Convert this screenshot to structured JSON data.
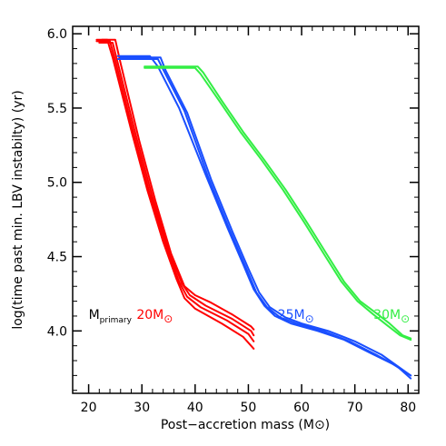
{
  "chart_data": {
    "type": "line",
    "xlabel": "Post−accretion mass (M⊙)",
    "ylabel": "log(time past min. LBV instabilty) (yr)",
    "xlim": [
      17,
      82
    ],
    "ylim": [
      3.58,
      6.05
    ],
    "xticks": [
      20,
      30,
      40,
      50,
      60,
      70,
      80
    ],
    "yticks": [
      4.0,
      4.5,
      5.0,
      5.5,
      6.0
    ],
    "ytick_labels": [
      "4.0",
      "4.5",
      "5.0",
      "5.5",
      "6.0"
    ],
    "grid": false,
    "annotations": [
      {
        "text": "M",
        "sub": "primary",
        "color": "#000000",
        "x": 20.0,
        "y": 4.08
      },
      {
        "text": "20M",
        "sub": "⊙",
        "color": "#ff0000",
        "x": 29.0,
        "y": 4.08
      },
      {
        "text": "25M",
        "sub": "⊙",
        "color": "#1a4fff",
        "x": 55.5,
        "y": 4.08
      },
      {
        "text": "30M",
        "sub": "⊙",
        "color": "#33ee44",
        "x": 73.5,
        "y": 4.08
      }
    ],
    "series": [
      {
        "group": "20M",
        "color": "#ff0000",
        "points": [
          [
            21.5,
            5.96
          ],
          [
            23.5,
            5.96
          ],
          [
            24.5,
            5.84
          ],
          [
            28,
            5.35
          ],
          [
            31,
            4.95
          ],
          [
            34,
            4.6
          ],
          [
            36.5,
            4.35
          ],
          [
            38,
            4.22
          ],
          [
            40,
            4.15
          ],
          [
            45,
            4.05
          ],
          [
            49,
            3.96
          ],
          [
            51,
            3.88
          ]
        ]
      },
      {
        "group": "20M",
        "color": "#ff0000",
        "points": [
          [
            21.5,
            5.95
          ],
          [
            24,
            5.95
          ],
          [
            25,
            5.82
          ],
          [
            28.5,
            5.32
          ],
          [
            31.5,
            4.92
          ],
          [
            34.5,
            4.58
          ],
          [
            37,
            4.33
          ],
          [
            38.5,
            4.23
          ],
          [
            41,
            4.16
          ],
          [
            46,
            4.07
          ],
          [
            50,
            3.98
          ],
          [
            51,
            3.93
          ]
        ]
      },
      {
        "group": "20M",
        "color": "#ff0000",
        "points": [
          [
            22,
            5.94
          ],
          [
            24.5,
            5.94
          ],
          [
            25.5,
            5.8
          ],
          [
            29,
            5.3
          ],
          [
            32,
            4.9
          ],
          [
            35,
            4.55
          ],
          [
            37.5,
            4.32
          ],
          [
            39,
            4.24
          ],
          [
            42,
            4.17
          ],
          [
            47,
            4.08
          ],
          [
            50.5,
            4.0
          ],
          [
            51,
            3.97
          ]
        ]
      },
      {
        "group": "20M",
        "color": "#ff0000",
        "points": [
          [
            22.5,
            5.96
          ],
          [
            25,
            5.96
          ],
          [
            26,
            5.8
          ],
          [
            29.5,
            5.28
          ],
          [
            32.5,
            4.88
          ],
          [
            35.5,
            4.52
          ],
          [
            38,
            4.3
          ],
          [
            40,
            4.24
          ],
          [
            43,
            4.19
          ],
          [
            47,
            4.11
          ],
          [
            50.5,
            4.03
          ],
          [
            51,
            4.01
          ]
        ]
      },
      {
        "group": "25M",
        "color": "#1a4fff",
        "points": [
          [
            25.5,
            5.85
          ],
          [
            31.5,
            5.85
          ],
          [
            33,
            5.78
          ],
          [
            37,
            5.5
          ],
          [
            42,
            5.05
          ],
          [
            46,
            4.7
          ],
          [
            49,
            4.45
          ],
          [
            51,
            4.28
          ],
          [
            53,
            4.17
          ],
          [
            55,
            4.1
          ],
          [
            58,
            4.05
          ],
          [
            63,
            4.0
          ],
          [
            68,
            3.94
          ],
          [
            73,
            3.85
          ],
          [
            77,
            3.78
          ],
          [
            80.5,
            3.7
          ]
        ]
      },
      {
        "group": "25M",
        "color": "#1a4fff",
        "points": [
          [
            25.5,
            5.83
          ],
          [
            33,
            5.83
          ],
          [
            34,
            5.76
          ],
          [
            38,
            5.48
          ],
          [
            42.5,
            5.03
          ],
          [
            46.5,
            4.68
          ],
          [
            49.5,
            4.43
          ],
          [
            51.5,
            4.26
          ],
          [
            53.5,
            4.16
          ],
          [
            56,
            4.09
          ],
          [
            59,
            4.05
          ],
          [
            64,
            4.0
          ],
          [
            69,
            3.93
          ],
          [
            74,
            3.84
          ],
          [
            78,
            3.76
          ],
          [
            80.5,
            3.68
          ]
        ]
      },
      {
        "group": "25M",
        "color": "#1a4fff",
        "points": [
          [
            26,
            5.84
          ],
          [
            33.5,
            5.84
          ],
          [
            34.5,
            5.75
          ],
          [
            38.5,
            5.47
          ],
          [
            43,
            5.02
          ],
          [
            47,
            4.67
          ],
          [
            50,
            4.42
          ],
          [
            52,
            4.26
          ],
          [
            54,
            4.16
          ],
          [
            57,
            4.09
          ],
          [
            60,
            4.05
          ],
          [
            65,
            4.0
          ],
          [
            70,
            3.93
          ],
          [
            75,
            3.84
          ],
          [
            80.5,
            3.7
          ]
        ]
      },
      {
        "group": "30M",
        "color": "#33ee44",
        "points": [
          [
            30.5,
            5.78
          ],
          [
            40.5,
            5.78
          ],
          [
            41.5,
            5.74
          ],
          [
            45,
            5.55
          ],
          [
            49,
            5.34
          ],
          [
            53,
            5.15
          ],
          [
            57,
            4.95
          ],
          [
            61,
            4.73
          ],
          [
            65,
            4.5
          ],
          [
            68,
            4.33
          ],
          [
            71,
            4.2
          ],
          [
            74,
            4.12
          ],
          [
            76.5,
            4.05
          ],
          [
            79,
            3.97
          ],
          [
            80.5,
            3.95
          ]
        ]
      },
      {
        "group": "30M",
        "color": "#33ee44",
        "points": [
          [
            30.5,
            5.77
          ],
          [
            40,
            5.77
          ],
          [
            41,
            5.73
          ],
          [
            44.5,
            5.55
          ],
          [
            48.5,
            5.34
          ],
          [
            52.5,
            5.15
          ],
          [
            56.5,
            4.95
          ],
          [
            60.5,
            4.73
          ],
          [
            64.5,
            4.5
          ],
          [
            67.5,
            4.33
          ],
          [
            70.5,
            4.2
          ],
          [
            73.5,
            4.11
          ],
          [
            76,
            4.04
          ],
          [
            78.5,
            3.97
          ],
          [
            80.5,
            3.94
          ]
        ]
      }
    ]
  }
}
